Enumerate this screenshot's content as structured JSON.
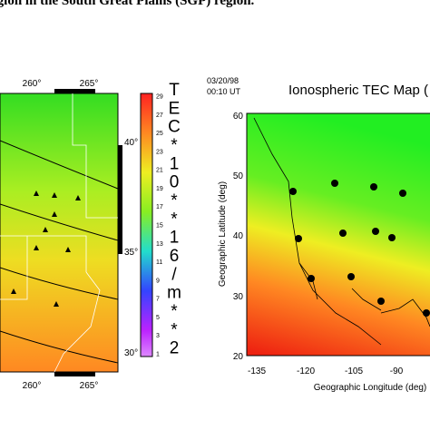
{
  "caption": "egion in the South Great Plains (SGP) region.",
  "left_map": {
    "top_ticks": [
      "260°",
      "265°"
    ],
    "right_ticks": [
      "40°",
      "35°",
      "30°"
    ],
    "bottom_ticks": [
      "260°",
      "265°"
    ]
  },
  "colorbar": {
    "ticks": [
      "29",
      "27",
      "25",
      "23",
      "21",
      "19",
      "17",
      "15",
      "13",
      "11",
      "9",
      "7",
      "5",
      "3",
      "1"
    ],
    "label": [
      "T",
      "E",
      "C",
      "*",
      "1",
      "0",
      "*",
      "*",
      "1",
      "6",
      "/",
      "m",
      "*",
      "*",
      "2"
    ]
  },
  "right_map": {
    "date": "03/20/98",
    "time": "00:10 UT",
    "title": "Ionospheric TEC Map (",
    "ylabel": "Geographic Latitude (deg)",
    "xlabel": "Geographic Longitude (deg)",
    "yticks": [
      "60",
      "50",
      "40",
      "30",
      "20"
    ],
    "xticks": [
      "-135",
      "-120",
      "-105",
      "-90"
    ]
  }
}
